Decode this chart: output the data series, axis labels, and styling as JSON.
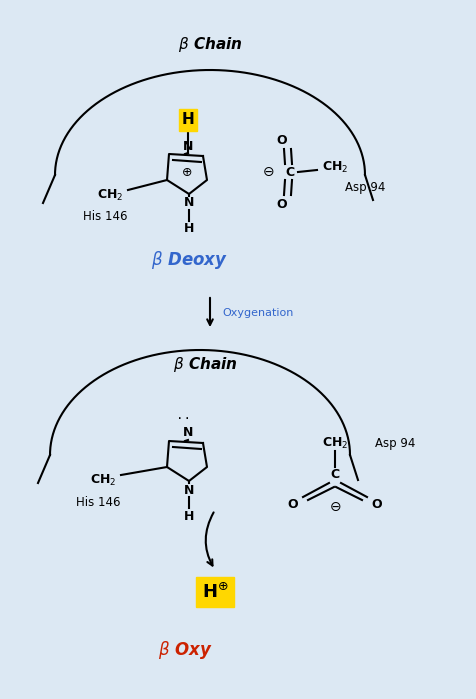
{
  "bg_color": "#dce8f3",
  "panel_bg": "#e8f0f8",
  "title_color": "black",
  "deoxy_color": "#3366cc",
  "oxy_color": "#cc2200",
  "arrow_color": "#3366cc",
  "his_label": "His 146",
  "asp_label": "Asp 94",
  "oxygenation_label": "Oxygenation"
}
